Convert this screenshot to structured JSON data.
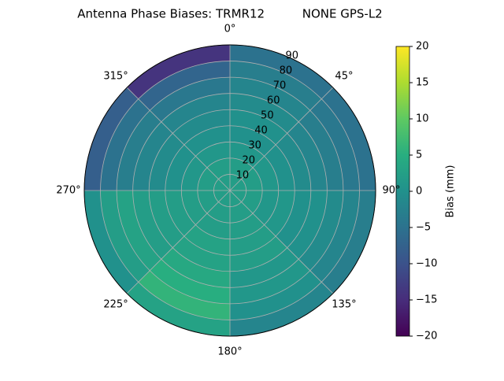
{
  "chart_data": {
    "type": "polar-heatmap",
    "title": "Antenna Phase Biases: TRMR12          NONE GPS-L2",
    "colorbar_label": "Bias (mm)",
    "colormap": "viridis",
    "azimuth_bins": [
      0,
      45,
      90,
      135,
      180,
      225,
      270,
      315,
      360
    ],
    "radius_bins": [
      0,
      10,
      20,
      30,
      40,
      50,
      60,
      70,
      80,
      90
    ],
    "values": [
      [
        2,
        2,
        2,
        2,
        2,
        2,
        2,
        2
      ],
      [
        2,
        2,
        2,
        2,
        2,
        2,
        2,
        2
      ],
      [
        1,
        1,
        1,
        2,
        2,
        2,
        1,
        1
      ],
      [
        0,
        0,
        1,
        2,
        3,
        2,
        0,
        0
      ],
      [
        0,
        -1,
        0,
        2,
        3,
        2,
        -1,
        -1
      ],
      [
        -1,
        -2,
        0,
        1,
        4,
        2,
        -2,
        -2
      ],
      [
        -2,
        -3,
        -1,
        1,
        5,
        3,
        -3,
        -4
      ],
      [
        -3,
        -4,
        -2,
        0,
        6,
        2,
        -5,
        -7
      ],
      [
        -5,
        -5,
        -3,
        -2,
        3,
        0,
        -8,
        -14
      ]
    ],
    "xlim": [
      0,
      360
    ],
    "xticks": [
      {
        "value": 0,
        "label": "0°"
      },
      {
        "value": 45,
        "label": "45°"
      },
      {
        "value": 90,
        "label": "90°"
      },
      {
        "value": 135,
        "label": "135°"
      },
      {
        "value": 180,
        "label": "180°"
      },
      {
        "value": 225,
        "label": "225°"
      },
      {
        "value": 270,
        "label": "270°"
      },
      {
        "value": 315,
        "label": "315°"
      }
    ],
    "ylim": [
      0,
      90
    ],
    "yticks": [
      10,
      20,
      30,
      40,
      50,
      60,
      70,
      80,
      90
    ],
    "grid": true,
    "clim": [
      -20,
      20
    ],
    "cticks": [
      {
        "value": -20,
        "label": "−20"
      },
      {
        "value": -15,
        "label": "−15"
      },
      {
        "value": -10,
        "label": "−10"
      },
      {
        "value": -5,
        "label": "−5"
      },
      0,
      5,
      10,
      15,
      20
    ]
  }
}
